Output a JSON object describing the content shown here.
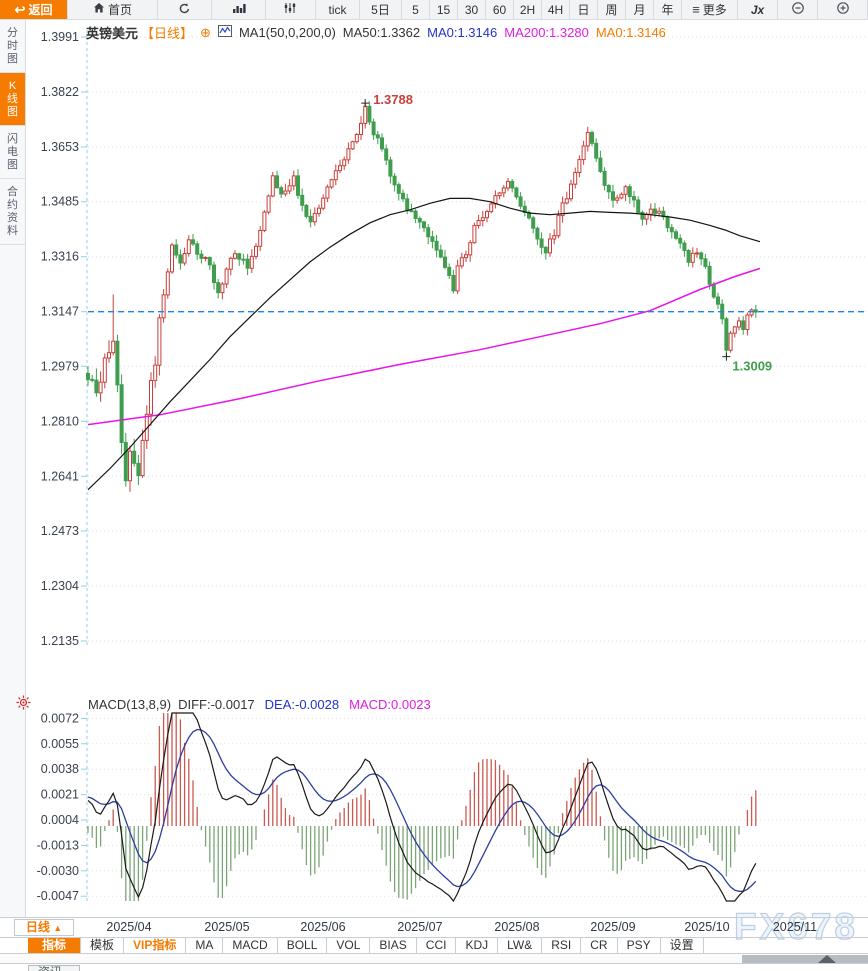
{
  "toolbar": {
    "items": [
      {
        "name": "back",
        "label": "返回",
        "icon": "back",
        "accent": true
      },
      {
        "name": "home",
        "label": "首页",
        "icon": "home"
      },
      {
        "name": "refresh",
        "label": "",
        "icon": "refresh"
      },
      {
        "name": "chart-type",
        "label": "",
        "icon": "bars"
      },
      {
        "name": "indicator-settings",
        "label": "",
        "icon": "candles"
      },
      {
        "name": "tick",
        "label": "tick"
      },
      {
        "name": "5d",
        "label": "5日"
      },
      {
        "name": "5m",
        "label": "5"
      },
      {
        "name": "15m",
        "label": "15"
      },
      {
        "name": "30m",
        "label": "30"
      },
      {
        "name": "60m",
        "label": "60"
      },
      {
        "name": "2h",
        "label": "2H"
      },
      {
        "name": "4h",
        "label": "4H"
      },
      {
        "name": "daily",
        "label": "日"
      },
      {
        "name": "weekly",
        "label": "周"
      },
      {
        "name": "monthly",
        "label": "月"
      },
      {
        "name": "yearly",
        "label": "年"
      },
      {
        "name": "more",
        "label": "更多",
        "icon": "menu"
      },
      {
        "name": "fx-function",
        "label": "Jx"
      },
      {
        "name": "zoom-out",
        "label": "",
        "icon": "zoom-out"
      },
      {
        "name": "zoom-in",
        "label": "",
        "icon": "zoom-in"
      }
    ]
  },
  "sidebar": {
    "items": [
      {
        "name": "time-chart",
        "label": "分时图",
        "active": false
      },
      {
        "name": "kline-chart",
        "label": "K线图",
        "active": true
      },
      {
        "name": "lightning-chart",
        "label": "闪电图",
        "active": false
      },
      {
        "name": "contract-info",
        "label": "合约资料",
        "active": false
      }
    ]
  },
  "chart_header": {
    "symbol": "英镑美元",
    "period": "【日线】",
    "plus": "⊕",
    "ma_settings": "MA1(50,0,200,0)",
    "ma50": "MA50:1.3362",
    "ma0_blue": "MA0:1.3146",
    "ma200": "MA200:1.3280",
    "ma0_orange": "MA0:1.3146"
  },
  "macd_header": {
    "title": "MACD(13,8,9)",
    "diff": "DIFF:-0.0017",
    "dea": "DEA:-0.0028",
    "macd": "MACD:0.0023"
  },
  "bottom": {
    "period_box": "日线",
    "period_arrow": "▲",
    "tabs": [
      {
        "label": "指标",
        "active": true
      },
      {
        "label": "模板"
      },
      {
        "label": "VIP指标",
        "vip": true
      },
      {
        "label": "MA"
      },
      {
        "label": "MACD"
      },
      {
        "label": "BOLL"
      },
      {
        "label": "VOL"
      },
      {
        "label": "BIAS"
      },
      {
        "label": "CCI"
      },
      {
        "label": "KDJ"
      },
      {
        "label": "LW&"
      },
      {
        "label": "RSI"
      },
      {
        "label": "CR"
      },
      {
        "label": "PSY"
      },
      {
        "label": "设置"
      }
    ],
    "news": "资讯"
  },
  "watermark": "FX678",
  "chart_data": {
    "type": "candlestick",
    "symbol": "英镑美元",
    "period": "日线",
    "price_axis": {
      "ticks": [
        1.3991,
        1.3822,
        1.3653,
        1.3485,
        1.3316,
        1.3147,
        1.2979,
        1.281,
        1.2641,
        1.2473,
        1.2304,
        1.2135
      ],
      "max": 1.3991,
      "min": 1.2135
    },
    "x_labels": [
      "2025/04",
      "2025/05",
      "2025/06",
      "2025/07",
      "2025/08",
      "2025/09",
      "2025/10",
      "2025/11"
    ],
    "last_price": 1.3147,
    "high_annotation": "1.3788",
    "low_annotation": "1.3009",
    "ma50_value": 1.3362,
    "ma200_value": 1.328,
    "close_anchors": [
      [
        0,
        1.2935
      ],
      [
        2,
        1.2905
      ],
      [
        4,
        1.299
      ],
      [
        6,
        1.306
      ],
      [
        7,
        1.293
      ],
      [
        8,
        1.276
      ],
      [
        9,
        1.264
      ],
      [
        10,
        1.272
      ],
      [
        12,
        1.266
      ],
      [
        14,
        1.285
      ],
      [
        16,
        1.3
      ],
      [
        17,
        1.313
      ],
      [
        19,
        1.328
      ],
      [
        20,
        1.334
      ],
      [
        22,
        1.33
      ],
      [
        24,
        1.336
      ],
      [
        27,
        1.332
      ],
      [
        29,
        1.329
      ],
      [
        31,
        1.3205
      ],
      [
        33,
        1.327
      ],
      [
        35,
        1.333
      ],
      [
        38,
        1.329
      ],
      [
        40,
        1.335
      ],
      [
        42,
        1.346
      ],
      [
        44,
        1.356
      ],
      [
        46,
        1.351
      ],
      [
        49,
        1.356
      ],
      [
        51,
        1.347
      ],
      [
        53,
        1.342
      ],
      [
        56,
        1.35
      ],
      [
        58,
        1.356
      ],
      [
        60,
        1.36
      ],
      [
        63,
        1.366
      ],
      [
        65,
        1.372
      ],
      [
        66,
        1.377
      ],
      [
        68,
        1.37
      ],
      [
        70,
        1.365
      ],
      [
        72,
        1.356
      ],
      [
        74,
        1.35
      ],
      [
        77,
        1.345
      ],
      [
        79,
        1.342
      ],
      [
        81,
        1.338
      ],
      [
        83,
        1.333
      ],
      [
        85,
        1.328
      ],
      [
        87,
        1.322
      ],
      [
        88,
        1.328
      ],
      [
        90,
        1.333
      ],
      [
        92,
        1.34
      ],
      [
        95,
        1.345
      ],
      [
        97,
        1.351
      ],
      [
        100,
        1.355
      ],
      [
        102,
        1.35
      ],
      [
        104,
        1.345
      ],
      [
        106,
        1.34
      ],
      [
        109,
        1.333
      ],
      [
        111,
        1.339
      ],
      [
        112,
        1.345
      ],
      [
        115,
        1.353
      ],
      [
        117,
        1.362
      ],
      [
        119,
        1.37
      ],
      [
        121,
        1.362
      ],
      [
        123,
        1.353
      ],
      [
        125,
        1.348
      ],
      [
        128,
        1.352
      ],
      [
        130,
        1.348
      ],
      [
        132,
        1.344
      ],
      [
        134,
        1.347
      ],
      [
        137,
        1.344
      ],
      [
        139,
        1.339
      ],
      [
        141,
        1.335
      ],
      [
        143,
        1.33
      ],
      [
        145,
        1.333
      ],
      [
        147,
        1.328
      ],
      [
        149,
        1.32
      ],
      [
        151,
        1.312
      ],
      [
        152,
        1.304
      ],
      [
        153,
        1.309
      ],
      [
        155,
        1.313
      ],
      [
        156,
        1.31
      ],
      [
        158,
        1.316
      ],
      [
        159,
        1.3146
      ]
    ],
    "ma50_anchors": [
      [
        88,
        1.26
      ],
      [
        110,
        1.2665
      ],
      [
        130,
        1.273
      ],
      [
        150,
        1.28
      ],
      [
        170,
        1.287
      ],
      [
        190,
        1.2935
      ],
      [
        210,
        1.3
      ],
      [
        230,
        1.307
      ],
      [
        250,
        1.313
      ],
      [
        270,
        1.319
      ],
      [
        290,
        1.3245
      ],
      [
        310,
        1.33
      ],
      [
        330,
        1.3345
      ],
      [
        350,
        1.3385
      ],
      [
        370,
        1.342
      ],
      [
        390,
        1.3445
      ],
      [
        410,
        1.346
      ],
      [
        430,
        1.348
      ],
      [
        450,
        1.3495
      ],
      [
        470,
        1.3495
      ],
      [
        490,
        1.3485
      ],
      [
        510,
        1.3465
      ],
      [
        530,
        1.345
      ],
      [
        550,
        1.3445
      ],
      [
        570,
        1.345
      ],
      [
        590,
        1.3455
      ],
      [
        610,
        1.3452
      ],
      [
        630,
        1.345
      ],
      [
        650,
        1.3445
      ],
      [
        670,
        1.3438
      ],
      [
        690,
        1.3428
      ],
      [
        710,
        1.3412
      ],
      [
        725,
        1.3398
      ],
      [
        740,
        1.338
      ],
      [
        760,
        1.3362
      ]
    ],
    "ma200_anchors": [
      [
        88,
        1.28
      ],
      [
        160,
        1.283
      ],
      [
        240,
        1.288
      ],
      [
        320,
        1.2935
      ],
      [
        400,
        1.2985
      ],
      [
        480,
        1.303
      ],
      [
        540,
        1.307
      ],
      [
        600,
        1.311
      ],
      [
        650,
        1.315
      ],
      [
        700,
        1.3215
      ],
      [
        735,
        1.3255
      ],
      [
        760,
        1.328
      ]
    ],
    "macd": {
      "params": "13,8,9",
      "diff": -0.0017,
      "dea": -0.0028,
      "macd": 0.0023,
      "ticks": [
        0.0072,
        0.0055,
        0.0038,
        0.0021,
        0.0004,
        -0.0013,
        -0.003,
        -0.0047
      ]
    },
    "colors": {
      "up": "#c8403c",
      "down": "#3f9e4e",
      "ma50": "#141414",
      "ma200": "#e813e8",
      "last_price_line": "#1d86ee",
      "grid": "#dfe0e4",
      "axis_tick": "#8fd2e6",
      "diff_line": "#1a1a1a",
      "dea_line": "#2c3f9e",
      "hist_up": "#c85a50",
      "hist_down": "#7ca577",
      "high_label": "#c8403c",
      "low_label": "#3f9e4e",
      "accent": "#f57c00"
    }
  }
}
